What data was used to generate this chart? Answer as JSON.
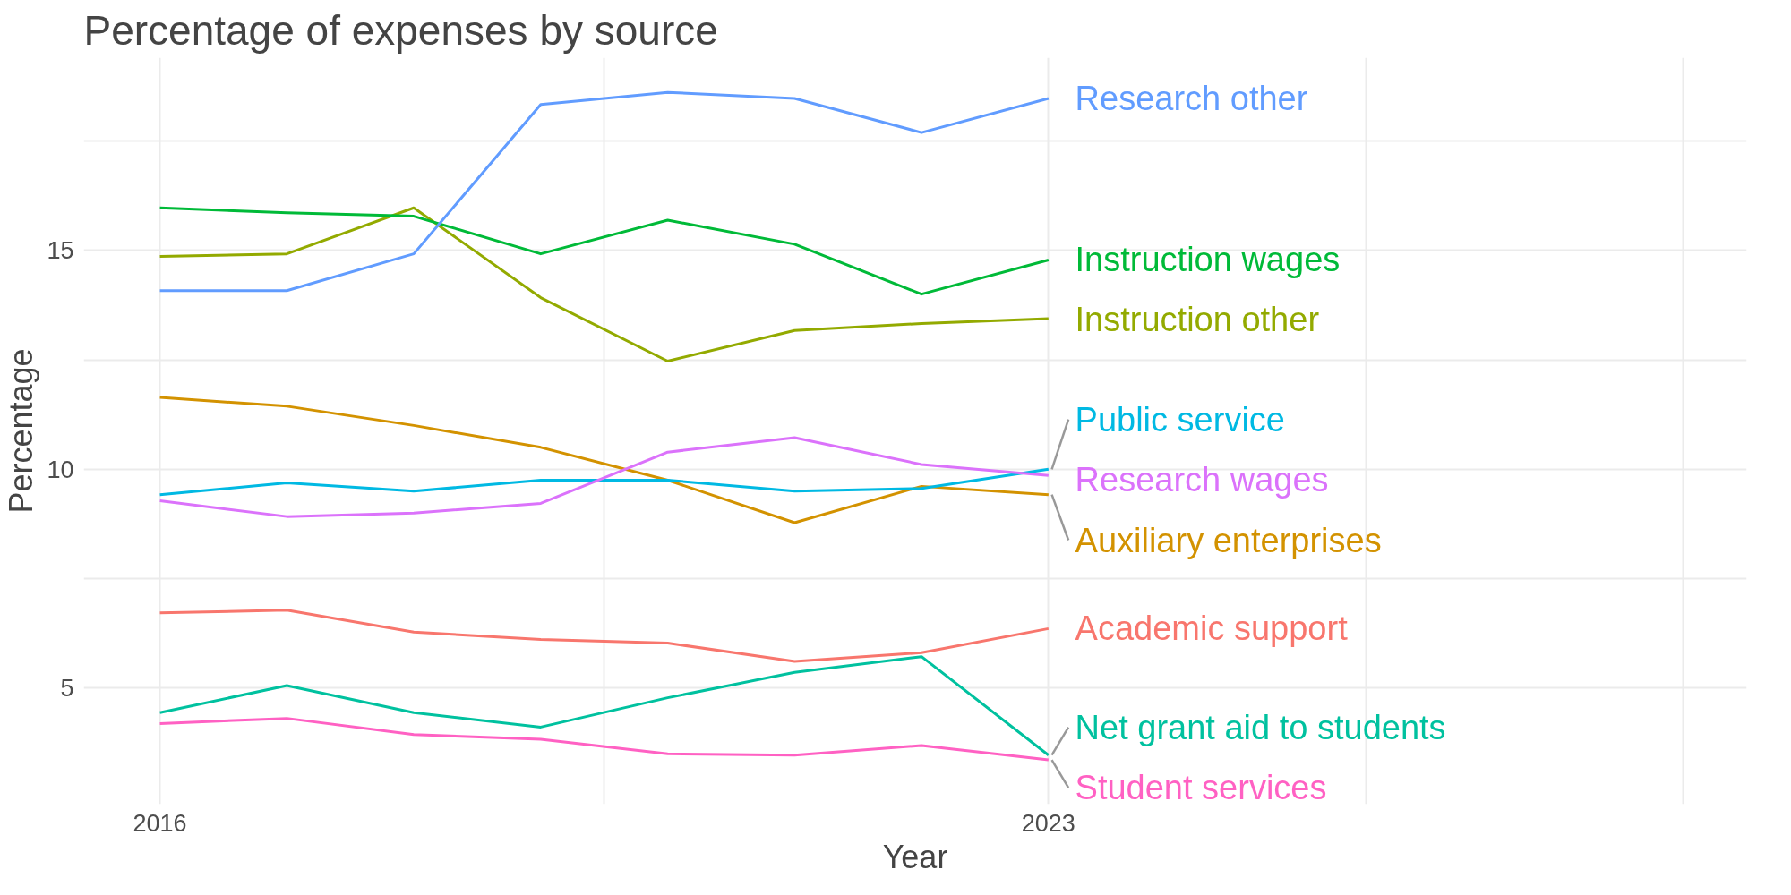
{
  "chart_data": {
    "type": "line",
    "title": "Percentage of expenses by source",
    "xlabel": "Year",
    "ylabel": "Percentage",
    "x": [
      2016,
      2017,
      2018,
      2019,
      2020,
      2021,
      2022,
      2023
    ],
    "xlim": [
      2015.4,
      2028.5
    ],
    "xticks": [
      2016,
      {
        "value": 2019.5,
        "label": null
      },
      2023,
      {
        "value": 2025.5,
        "label": null
      },
      {
        "value": 2028,
        "label": null
      }
    ],
    "ylim": [
      2.35,
      19.4
    ],
    "yticks": [
      5,
      {
        "value": 7.5,
        "label": null
      },
      10,
      {
        "value": 12.5,
        "label": null
      },
      15,
      {
        "value": 17.5,
        "label": null
      }
    ],
    "grid": true,
    "legend": false,
    "marker": "none",
    "line_style": "solid",
    "series": [
      {
        "name": "Academic support",
        "color": "#f8766d",
        "values": [
          6.72,
          6.78,
          6.28,
          6.11,
          6.03,
          5.61,
          5.81,
          6.36
        ]
      },
      {
        "name": "Auxiliary enterprises",
        "color": "#d39200",
        "values": [
          11.64,
          11.44,
          11.0,
          10.5,
          9.75,
          8.78,
          9.61,
          9.42
        ]
      },
      {
        "name": "Instruction other",
        "color": "#93aa00",
        "values": [
          14.86,
          14.92,
          15.97,
          13.92,
          12.47,
          13.17,
          13.33,
          13.44
        ]
      },
      {
        "name": "Instruction wages",
        "color": "#00ba38",
        "values": [
          15.97,
          15.86,
          15.78,
          14.92,
          15.69,
          15.14,
          14.0,
          14.78
        ]
      },
      {
        "name": "Net grant aid to students",
        "color": "#00c19f",
        "values": [
          4.44,
          5.06,
          4.44,
          4.11,
          4.78,
          5.36,
          5.72,
          3.47
        ]
      },
      {
        "name": "Public service",
        "color": "#00b9e3",
        "values": [
          9.42,
          9.69,
          9.5,
          9.75,
          9.75,
          9.5,
          9.56,
          10.0
        ]
      },
      {
        "name": "Research other",
        "color": "#619cff",
        "values": [
          14.08,
          14.08,
          14.92,
          18.33,
          18.61,
          18.47,
          17.69,
          18.47
        ]
      },
      {
        "name": "Research wages",
        "color": "#db72fb",
        "values": [
          9.28,
          8.92,
          9.0,
          9.22,
          10.39,
          10.72,
          10.11,
          9.86
        ]
      },
      {
        "name": "Student services",
        "color": "#ff61c3",
        "values": [
          4.19,
          4.31,
          3.94,
          3.83,
          3.5,
          3.47,
          3.69,
          3.36
        ]
      }
    ]
  }
}
